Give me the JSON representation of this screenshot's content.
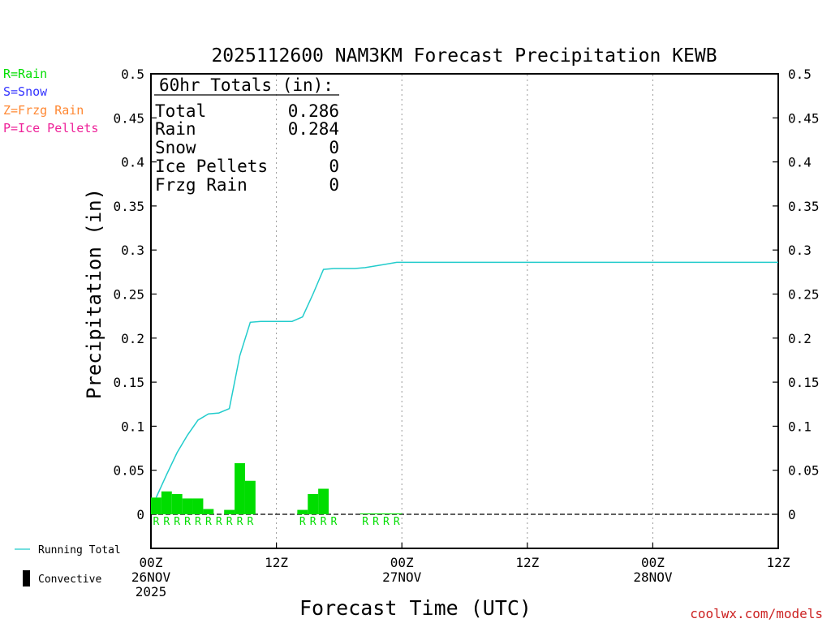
{
  "title": "2025112600 NAM3KM Forecast Precipitation KEWB",
  "colors": {
    "rain": "#00dd00",
    "snow": "#3333ff",
    "frzg_rain": "#ff8833",
    "ice_pellets": "#ee2299",
    "running_total": "#22cccc",
    "bars": "#00dd00",
    "credit": "#cc2222"
  },
  "legend": {
    "precip_types": [
      {
        "label": "R=Rain",
        "color_key": "rain"
      },
      {
        "label": "S=Snow",
        "color_key": "snow"
      },
      {
        "label": "Z=Frzg Rain",
        "color_key": "frzg_rain"
      },
      {
        "label": "P=Ice Pellets",
        "color_key": "ice_pellets"
      }
    ],
    "running_total_label": "Running Total",
    "convective_label": "Convective"
  },
  "totals": {
    "heading": "60hr Totals (in):",
    "rows": [
      {
        "label": "Total",
        "value": "0.286"
      },
      {
        "label": "Rain",
        "value": "0.284"
      },
      {
        "label": "Snow",
        "value": "0"
      },
      {
        "label": "Ice Pellets",
        "value": "0"
      },
      {
        "label": "Frzg Rain",
        "value": "0"
      }
    ]
  },
  "credit": "coolwx.com/models",
  "chart_data": {
    "type": "bar",
    "title": "2025112600 NAM3KM Forecast Precipitation KEWB",
    "xlabel": "Forecast Time (UTC)",
    "ylabel": "Precipitation (in)",
    "xlim": [
      0,
      60
    ],
    "ylim": [
      -0.04,
      0.5
    ],
    "yticks": [
      0,
      0.05,
      0.1,
      0.15,
      0.2,
      0.25,
      0.3,
      0.35,
      0.4,
      0.45,
      0.5
    ],
    "ytick_labels": [
      "0",
      "0.05",
      "0.1",
      "0.15",
      "0.2",
      "0.25",
      "0.3",
      "0.35",
      "0.4",
      "0.45",
      "0.5"
    ],
    "grid_x_hours": [
      12,
      24,
      36,
      48
    ],
    "xticks": [
      {
        "hour": 0,
        "lines": [
          "00Z",
          "26NOV",
          "2025"
        ]
      },
      {
        "hour": 12,
        "lines": [
          "12Z"
        ]
      },
      {
        "hour": 24,
        "lines": [
          "00Z",
          "27NOV"
        ]
      },
      {
        "hour": 36,
        "lines": [
          "12Z"
        ]
      },
      {
        "hour": 48,
        "lines": [
          "00Z",
          "28NOV"
        ]
      },
      {
        "hour": 60,
        "lines": [
          "12Z"
        ]
      }
    ],
    "series": [
      {
        "name": "Hourly precipitation",
        "kind": "bar",
        "x": [
          0,
          1,
          2,
          3,
          4,
          5,
          6,
          7,
          8,
          9,
          10,
          11,
          12,
          13,
          14,
          15,
          16,
          17,
          18,
          19,
          20,
          21,
          22,
          23
        ],
        "values": [
          0.019,
          0.026,
          0.023,
          0.018,
          0.018,
          0.006,
          0,
          0.005,
          0.058,
          0.038,
          0,
          0,
          0,
          0,
          0.005,
          0.023,
          0.029,
          0,
          0,
          0,
          0.001,
          0.001,
          0.001,
          0.001
        ],
        "ptype": [
          "R",
          "R",
          "R",
          "R",
          "R",
          "R",
          "R",
          "R",
          "R",
          "R",
          "",
          "",
          "",
          "",
          "R",
          "R",
          "R",
          "R",
          "",
          "",
          "R",
          "R",
          "R",
          "R"
        ]
      },
      {
        "name": "Running Total",
        "kind": "line",
        "x": [
          0.5,
          1.5,
          2.5,
          3.5,
          4.5,
          5.5,
          6.5,
          7.5,
          8.5,
          9.5,
          10.5,
          11.5,
          12.5,
          13.5,
          14.5,
          15.5,
          16.5,
          17.5,
          18.5,
          19.5,
          20.5,
          21.5,
          22.5,
          23.5,
          24.5,
          30,
          36,
          48,
          60
        ],
        "values": [
          0.019,
          0.045,
          0.07,
          0.09,
          0.107,
          0.114,
          0.115,
          0.12,
          0.18,
          0.218,
          0.219,
          0.219,
          0.219,
          0.219,
          0.224,
          0.25,
          0.278,
          0.279,
          0.279,
          0.279,
          0.28,
          0.282,
          0.284,
          0.286,
          0.286,
          0.286,
          0.286,
          0.286,
          0.286
        ]
      }
    ]
  }
}
